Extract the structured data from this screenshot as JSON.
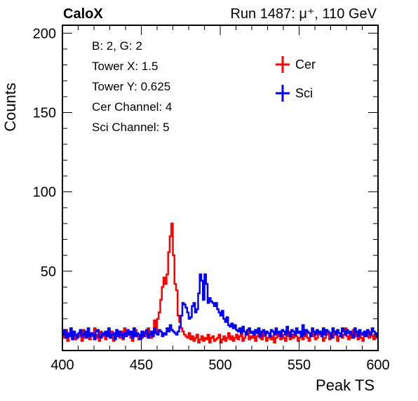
{
  "chart_data": {
    "type": "line",
    "header_left": "CaloX",
    "header_right": "Run 1487:   μ⁺, 110 GeV",
    "xlabel": "Peak TS",
    "ylabel": "Counts",
    "xlim": [
      400,
      600
    ],
    "ylim": [
      0,
      205
    ],
    "x_ticks": [
      400,
      450,
      500,
      550,
      600
    ],
    "y_ticks": [
      50,
      100,
      150,
      200
    ],
    "legend_position": "top-right",
    "info_lines": [
      "B: 2, G: 2",
      "Tower X: 1.5",
      "Tower Y: 0.625",
      "Cer Channel: 4",
      "Sci Channel: 5"
    ],
    "x": [
      400,
      401,
      402,
      403,
      404,
      405,
      406,
      407,
      408,
      409,
      410,
      411,
      412,
      413,
      414,
      415,
      416,
      417,
      418,
      419,
      420,
      421,
      422,
      423,
      424,
      425,
      426,
      427,
      428,
      429,
      430,
      431,
      432,
      433,
      434,
      435,
      436,
      437,
      438,
      439,
      440,
      441,
      442,
      443,
      444,
      445,
      446,
      447,
      448,
      449,
      450,
      451,
      452,
      453,
      454,
      455,
      456,
      457,
      458,
      459,
      460,
      461,
      462,
      463,
      464,
      465,
      466,
      467,
      468,
      469,
      470,
      471,
      472,
      473,
      474,
      475,
      476,
      477,
      478,
      479,
      480,
      481,
      482,
      483,
      484,
      485,
      486,
      487,
      488,
      489,
      490,
      491,
      492,
      493,
      494,
      495,
      496,
      497,
      498,
      499,
      500,
      501,
      502,
      503,
      504,
      505,
      506,
      507,
      508,
      509,
      510,
      511,
      512,
      513,
      514,
      515,
      516,
      517,
      518,
      519,
      520,
      521,
      522,
      523,
      524,
      525,
      526,
      527,
      528,
      529,
      530,
      531,
      532,
      533,
      534,
      535,
      536,
      537,
      538,
      539,
      540,
      541,
      542,
      543,
      544,
      545,
      546,
      547,
      548,
      549,
      550,
      551,
      552,
      553,
      554,
      555,
      556,
      557,
      558,
      559,
      560,
      561,
      562,
      563,
      564,
      565,
      566,
      567,
      568,
      569,
      570,
      571,
      572,
      573,
      574,
      575,
      576,
      577,
      578,
      579,
      580,
      581,
      582,
      583,
      584,
      585,
      586,
      587,
      588,
      589,
      590,
      591,
      592,
      593,
      594,
      595,
      596,
      597,
      598,
      599
    ],
    "series": [
      {
        "name": "Cer",
        "color": "#ff0000",
        "values": [
          8,
          10,
          13,
          6,
          9,
          11,
          8,
          12,
          7,
          10,
          9,
          11,
          6,
          13,
          8,
          10,
          12,
          7,
          9,
          11,
          14,
          8,
          10,
          6,
          12,
          9,
          11,
          7,
          10,
          13,
          8,
          12,
          6,
          9,
          11,
          10,
          8,
          12,
          7,
          14,
          9,
          10,
          11,
          8,
          6,
          12,
          13,
          9,
          7,
          10,
          8,
          12,
          11,
          9,
          14,
          10,
          8,
          12,
          19,
          11,
          20,
          24,
          32,
          40,
          46,
          42,
          48,
          62,
          72,
          80,
          60,
          42,
          38,
          22,
          18,
          14,
          12,
          10,
          9,
          8,
          11,
          7,
          9,
          6,
          8,
          10,
          5,
          7,
          9,
          6,
          8,
          7,
          10,
          5,
          8,
          9,
          6,
          7,
          8,
          10,
          5,
          7,
          9,
          6,
          8,
          11,
          7,
          9,
          6,
          8,
          10,
          7,
          9,
          11,
          6,
          8,
          10,
          12,
          7,
          9,
          8,
          11,
          6,
          9,
          10,
          8,
          7,
          12,
          9,
          6,
          8,
          10,
          7,
          9,
          5,
          8,
          11,
          9,
          7,
          10,
          8,
          6,
          9,
          12,
          7,
          10,
          8,
          11,
          9,
          6,
          8,
          10,
          7,
          9,
          12,
          8,
          6,
          10,
          9,
          11,
          7,
          8,
          10,
          12,
          9,
          6,
          8,
          11,
          10,
          7,
          9,
          8,
          12,
          10,
          6,
          9,
          11,
          8,
          10,
          14,
          9,
          7,
          10,
          8,
          13,
          11,
          9,
          7,
          10,
          8,
          6,
          9,
          11,
          10,
          8,
          12,
          9,
          7,
          10,
          8
        ]
      },
      {
        "name": "Sci",
        "color": "#0000ff",
        "values": [
          10,
          13,
          8,
          11,
          9,
          14,
          7,
          12,
          10,
          8,
          11,
          13,
          9,
          10,
          12,
          8,
          14,
          9,
          11,
          10,
          7,
          12,
          13,
          9,
          8,
          11,
          10,
          12,
          9,
          14,
          8,
          10,
          11,
          7,
          13,
          9,
          12,
          10,
          8,
          11,
          9,
          13,
          10,
          12,
          8,
          14,
          9,
          11,
          10,
          7,
          12,
          9,
          11,
          13,
          8,
          10,
          12,
          9,
          14,
          11,
          10,
          13,
          12,
          9,
          11,
          10,
          14,
          12,
          16,
          13,
          12,
          11,
          10,
          12,
          15,
          22,
          30,
          29,
          27,
          24,
          20,
          21,
          28,
          30,
          24,
          26,
          36,
          48,
          44,
          32,
          48,
          42,
          30,
          33,
          31,
          30,
          28,
          30,
          26,
          24,
          22,
          25,
          20,
          18,
          21,
          16,
          15,
          17,
          14,
          16,
          13,
          12,
          14,
          11,
          15,
          12,
          10,
          13,
          14,
          11,
          12,
          10,
          13,
          11,
          14,
          9,
          12,
          13,
          10,
          12,
          11,
          9,
          13,
          12,
          10,
          14,
          11,
          12,
          9,
          13,
          12,
          10,
          15,
          11,
          9,
          13,
          12,
          10,
          14,
          11,
          12,
          9,
          16,
          10,
          13,
          12,
          11,
          9,
          14,
          12,
          10,
          13,
          11,
          12,
          9,
          14,
          10,
          13,
          12,
          11,
          8,
          14,
          12,
          10,
          13,
          11,
          9,
          14,
          12,
          10,
          13,
          11,
          12,
          10,
          8,
          14,
          12,
          9,
          13,
          11,
          10,
          12,
          9,
          13,
          11,
          10,
          14,
          12,
          11,
          9
        ]
      }
    ]
  }
}
